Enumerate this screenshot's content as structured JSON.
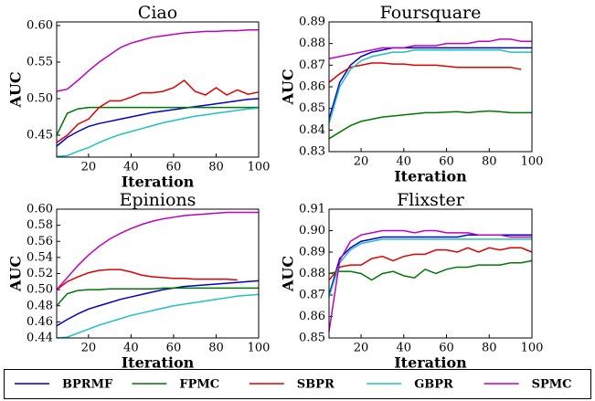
{
  "chart_data": [
    {
      "type": "line",
      "title": "Ciao",
      "xlabel": "Iteration",
      "ylabel": "AUC",
      "x": [
        5,
        10,
        15,
        20,
        25,
        30,
        35,
        40,
        45,
        50,
        55,
        60,
        65,
        70,
        75,
        80,
        85,
        90,
        95,
        100
      ],
      "xlim": [
        5,
        100
      ],
      "xticks": [
        20,
        40,
        60,
        80,
        100
      ],
      "ylim": [
        0.42,
        0.605
      ],
      "yticks": [
        0.45,
        {
          "value": 0.5,
          "label": "0.50"
        },
        0.55,
        {
          "value": 0.6,
          "label": "0.60"
        }
      ],
      "series": [
        {
          "name": "BPRMF",
          "color": "#0000cc",
          "values": [
            0.435,
            0.447,
            0.455,
            0.462,
            0.466,
            0.469,
            0.472,
            0.475,
            0.478,
            0.481,
            0.483,
            0.485,
            0.487,
            0.489,
            0.491,
            0.493,
            0.495,
            0.497,
            0.499,
            0.5
          ]
        },
        {
          "name": "FPMC",
          "color": "#007700",
          "values": [
            0.45,
            0.48,
            0.486,
            0.488,
            0.488,
            0.488,
            0.488,
            0.488,
            0.488,
            0.488,
            0.488,
            0.488,
            0.488,
            0.488,
            0.488,
            0.488,
            0.488,
            0.488,
            0.488,
            0.488
          ]
        },
        {
          "name": "SBPR",
          "color": "#e00000",
          "values": [
            0.44,
            0.45,
            0.465,
            0.472,
            0.488,
            0.497,
            0.497,
            0.502,
            0.508,
            0.508,
            0.51,
            0.515,
            0.525,
            0.51,
            0.505,
            0.515,
            0.505,
            0.512,
            0.506,
            0.509
          ]
        },
        {
          "name": "GBPR",
          "color": "#20c0c0",
          "values": [
            0.421,
            0.422,
            0.428,
            0.433,
            0.44,
            0.446,
            0.451,
            0.455,
            0.459,
            0.463,
            0.467,
            0.47,
            0.473,
            0.476,
            0.478,
            0.48,
            0.482,
            0.484,
            0.486,
            0.487
          ]
        },
        {
          "name": "SPMC",
          "color": "#c000c0",
          "values": [
            0.51,
            0.513,
            0.525,
            0.538,
            0.55,
            0.56,
            0.57,
            0.576,
            0.58,
            0.584,
            0.586,
            0.588,
            0.59,
            0.591,
            0.592,
            0.592,
            0.593,
            0.593,
            0.594,
            0.594
          ]
        }
      ]
    },
    {
      "type": "line",
      "title": "Foursquare",
      "xlabel": "Iteration",
      "ylabel": "AUC",
      "x": [
        5,
        10,
        15,
        20,
        25,
        30,
        35,
        40,
        45,
        50,
        55,
        60,
        65,
        70,
        75,
        80,
        85,
        90,
        95,
        100
      ],
      "xlim": [
        5,
        100
      ],
      "xticks": [
        20,
        40,
        60,
        80,
        100
      ],
      "ylim": [
        0.83,
        0.89
      ],
      "yticks": [
        0.83,
        0.84,
        0.85,
        0.86,
        0.87,
        0.88,
        0.89
      ],
      "series": [
        {
          "name": "BPRMF",
          "color": "#0000cc",
          "values": [
            0.845,
            0.862,
            0.87,
            0.874,
            0.876,
            0.877,
            0.878,
            0.878,
            0.878,
            0.878,
            0.878,
            0.878,
            0.878,
            0.878,
            0.878,
            0.878,
            0.878,
            0.878,
            0.878,
            0.878
          ]
        },
        {
          "name": "FPMC",
          "color": "#007700",
          "values": [
            0.836,
            0.839,
            0.842,
            0.844,
            0.845,
            0.846,
            0.8465,
            0.847,
            0.8475,
            0.848,
            0.848,
            0.8483,
            0.8485,
            0.848,
            0.8485,
            0.8488,
            0.8485,
            0.848,
            0.848,
            0.848
          ]
        },
        {
          "name": "SBPR",
          "color": "#e00000",
          "values": [
            0.862,
            0.866,
            0.869,
            0.87,
            0.871,
            0.871,
            0.8705,
            0.8705,
            0.87,
            0.87,
            0.87,
            0.8695,
            0.869,
            0.869,
            0.869,
            0.869,
            0.869,
            0.869,
            0.868,
            null
          ]
        },
        {
          "name": "GBPR",
          "color": "#20c0c0",
          "values": [
            0.843,
            0.86,
            0.868,
            0.872,
            0.874,
            0.875,
            0.876,
            0.876,
            0.877,
            0.877,
            0.877,
            0.877,
            0.877,
            0.877,
            0.877,
            0.877,
            0.877,
            0.876,
            0.876,
            0.876
          ]
        },
        {
          "name": "SPMC",
          "color": "#c000c0",
          "values": [
            0.873,
            0.874,
            0.875,
            0.876,
            0.877,
            0.878,
            0.878,
            0.878,
            0.879,
            0.879,
            0.879,
            0.88,
            0.88,
            0.88,
            0.881,
            0.881,
            0.882,
            0.882,
            0.881,
            0.881
          ]
        }
      ]
    },
    {
      "type": "line",
      "title": "Epinions",
      "xlabel": "Iteration",
      "ylabel": "AUC",
      "x": [
        5,
        10,
        15,
        20,
        25,
        30,
        35,
        40,
        45,
        50,
        55,
        60,
        65,
        70,
        75,
        80,
        85,
        90,
        95,
        100
      ],
      "xlim": [
        5,
        100
      ],
      "xticks": [
        20,
        40,
        60,
        80,
        100
      ],
      "ylim": [
        0.44,
        0.6
      ],
      "yticks": [
        0.44,
        0.46,
        0.48,
        {
          "value": 0.5,
          "label": "0.50"
        },
        0.52,
        0.54,
        0.56,
        0.58,
        {
          "value": 0.6,
          "label": "0.60"
        }
      ],
      "series": [
        {
          "name": "BPRMF",
          "color": "#0000cc",
          "values": [
            0.455,
            0.463,
            0.47,
            0.476,
            0.48,
            0.484,
            0.488,
            0.491,
            0.494,
            0.497,
            0.5,
            0.502,
            0.504,
            0.505,
            0.506,
            0.507,
            0.508,
            0.509,
            0.51,
            0.511
          ]
        },
        {
          "name": "FPMC",
          "color": "#007700",
          "values": [
            0.48,
            0.495,
            0.499,
            0.5,
            0.5,
            0.501,
            0.501,
            0.501,
            0.501,
            0.501,
            0.502,
            0.502,
            0.502,
            0.502,
            0.502,
            0.502,
            0.502,
            0.502,
            0.502,
            0.502
          ]
        },
        {
          "name": "SBPR",
          "color": "#e00000",
          "values": [
            0.5,
            0.51,
            0.516,
            0.521,
            0.524,
            0.525,
            0.525,
            0.522,
            0.518,
            0.516,
            0.515,
            0.514,
            0.514,
            0.513,
            0.513,
            0.513,
            0.513,
            0.512,
            null,
            null
          ]
        },
        {
          "name": "GBPR",
          "color": "#20c0c0",
          "values": [
            0.44,
            0.441,
            0.446,
            0.451,
            0.456,
            0.46,
            0.464,
            0.468,
            0.471,
            0.474,
            0.477,
            0.48,
            0.482,
            0.484,
            0.486,
            0.488,
            0.49,
            0.492,
            0.493,
            0.494
          ]
        },
        {
          "name": "SPMC",
          "color": "#c000c0",
          "values": [
            0.5,
            0.515,
            0.53,
            0.543,
            0.554,
            0.563,
            0.57,
            0.576,
            0.581,
            0.585,
            0.588,
            0.59,
            0.592,
            0.593,
            0.594,
            0.595,
            0.596,
            0.596,
            0.596,
            0.596
          ]
        }
      ]
    },
    {
      "type": "line",
      "title": "Flixster",
      "xlabel": "Iteration",
      "ylabel": "AUC",
      "x": [
        5,
        10,
        15,
        20,
        25,
        30,
        35,
        40,
        45,
        50,
        55,
        60,
        65,
        70,
        75,
        80,
        85,
        90,
        95,
        100
      ],
      "xlim": [
        5,
        100
      ],
      "xticks": [
        20,
        40,
        60,
        80,
        100
      ],
      "ylim": [
        0.85,
        0.91
      ],
      "yticks": [
        0.85,
        0.86,
        0.87,
        0.88,
        0.89,
        {
          "value": 0.9,
          "label": "0.90"
        },
        0.91
      ],
      "series": [
        {
          "name": "BPRMF",
          "color": "#0000cc",
          "values": [
            0.87,
            0.887,
            0.892,
            0.895,
            0.896,
            0.897,
            0.897,
            0.897,
            0.897,
            0.897,
            0.897,
            0.897,
            0.897,
            0.898,
            0.898,
            0.898,
            0.898,
            0.898,
            0.898,
            0.898
          ]
        },
        {
          "name": "FPMC",
          "color": "#007700",
          "values": [
            0.88,
            0.881,
            0.881,
            0.88,
            0.877,
            0.88,
            0.881,
            0.879,
            0.878,
            0.882,
            0.88,
            0.882,
            0.883,
            0.883,
            0.884,
            0.884,
            0.884,
            0.885,
            0.885,
            0.886
          ]
        },
        {
          "name": "SBPR",
          "color": "#e00000",
          "values": [
            0.877,
            0.883,
            0.884,
            0.884,
            0.887,
            0.888,
            0.886,
            0.888,
            0.889,
            0.889,
            0.891,
            0.891,
            0.89,
            0.892,
            0.89,
            0.892,
            0.891,
            0.892,
            0.892,
            0.89
          ]
        },
        {
          "name": "GBPR",
          "color": "#20c0c0",
          "values": [
            0.869,
            0.885,
            0.891,
            0.894,
            0.895,
            0.896,
            0.896,
            0.896,
            0.896,
            0.896,
            0.896,
            0.896,
            0.896,
            0.896,
            0.896,
            0.896,
            0.896,
            0.896,
            0.896,
            0.896
          ]
        },
        {
          "name": "SPMC",
          "color": "#c000c0",
          "values": [
            0.853,
            0.886,
            0.895,
            0.898,
            0.899,
            0.9,
            0.9,
            0.9,
            0.899,
            0.9,
            0.9,
            0.899,
            0.899,
            0.899,
            0.898,
            0.898,
            0.898,
            0.897,
            0.897,
            0.897
          ]
        }
      ]
    }
  ]
}
